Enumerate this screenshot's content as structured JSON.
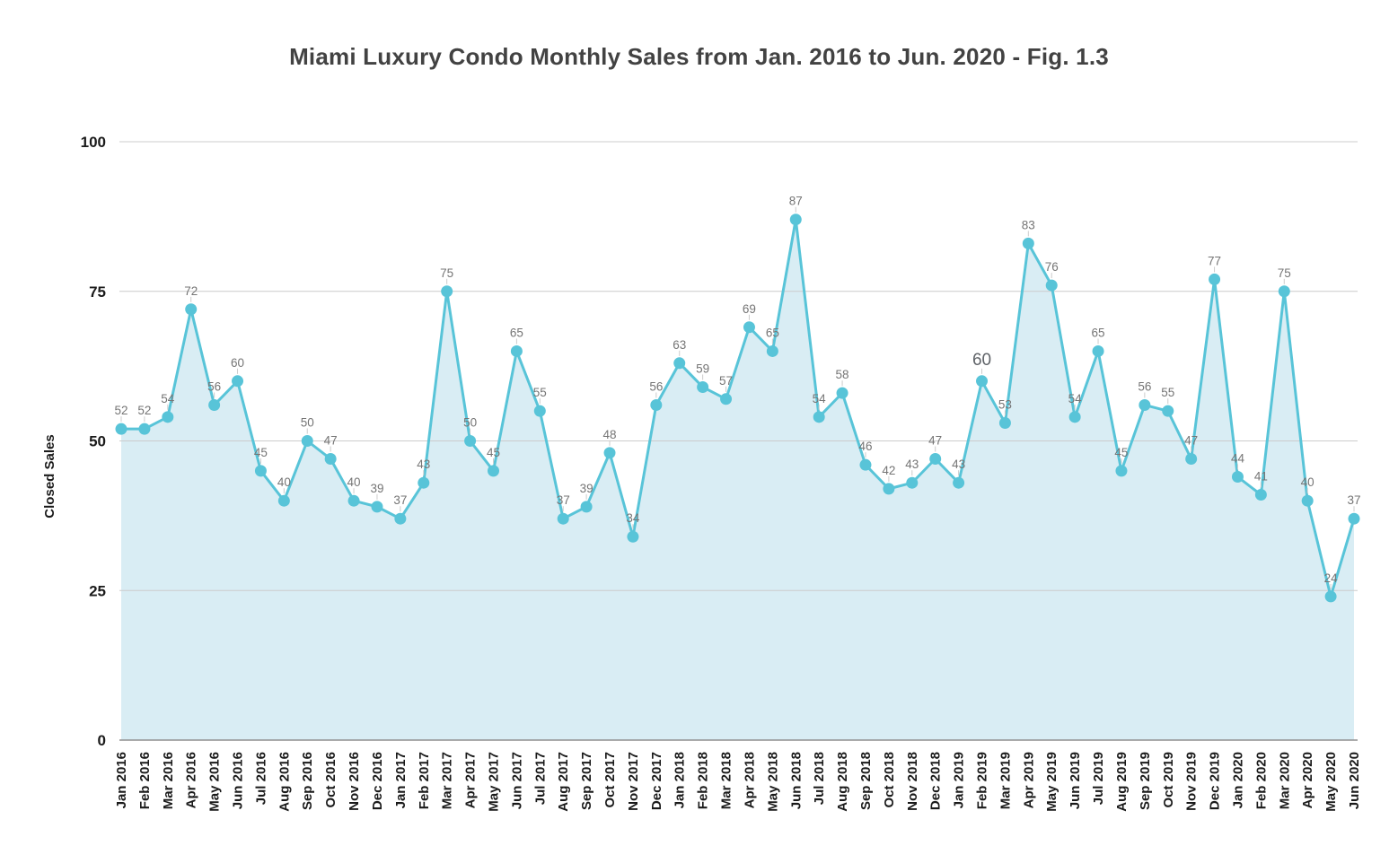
{
  "chart_data": {
    "type": "area",
    "title": "Miami Luxury Condo Monthly Sales from Jan. 2016 to Jun. 2020 - Fig. 1.3",
    "xlabel": "",
    "ylabel": "Closed Sales",
    "ylim": [
      0,
      100
    ],
    "yticks": [
      0,
      25,
      50,
      75,
      100
    ],
    "grid": "horizontal",
    "legend": "none",
    "point_labels_visible": true,
    "categories": [
      "Jan 2016",
      "Feb 2016",
      "Mar 2016",
      "Apr 2016",
      "May 2016",
      "Jun 2016",
      "Jul 2016",
      "Aug 2016",
      "Sep 2016",
      "Oct 2016",
      "Nov 2016",
      "Dec 2016",
      "Jan 2017",
      "Feb 2017",
      "Mar 2017",
      "Apr 2017",
      "May 2017",
      "Jun 2017",
      "Jul 2017",
      "Aug 2017",
      "Sep 2017",
      "Oct 2017",
      "Nov 2017",
      "Dec 2017",
      "Jan 2018",
      "Feb 2018",
      "Mar 2018",
      "Apr 2018",
      "May 2018",
      "Jun 2018",
      "Jul 2018",
      "Aug 2018",
      "Sep 2018",
      "Oct 2018",
      "Nov 2018",
      "Dec 2018",
      "Jan 2019",
      "Feb 2019",
      "Mar 2019",
      "Apr 2019",
      "May 2019",
      "Jun 2019",
      "Jul 2019",
      "Aug 2019",
      "Sep 2019",
      "Oct 2019",
      "Nov 2019",
      "Dec 2019",
      "Jan 2020",
      "Feb 2020",
      "Mar 2020",
      "Apr 2020",
      "May 2020",
      "Jun 2020"
    ],
    "series": [
      {
        "name": "Closed Sales",
        "values": [
          52,
          52,
          54,
          72,
          56,
          60,
          45,
          40,
          50,
          47,
          40,
          39,
          37,
          43,
          75,
          50,
          45,
          65,
          55,
          37,
          39,
          48,
          34,
          56,
          63,
          59,
          57,
          69,
          65,
          87,
          54,
          58,
          46,
          42,
          43,
          47,
          43,
          60,
          53,
          83,
          76,
          54,
          65,
          45,
          56,
          55,
          47,
          77,
          44,
          41,
          75,
          40,
          24,
          37
        ]
      }
    ],
    "emphasized_label": {
      "category": "Feb 2019",
      "value": 60,
      "index": 37
    },
    "colors": {
      "line": "#58c4d8",
      "marker": "#58c4d8",
      "fill": "#d9edf4",
      "gridline": "#cccccc",
      "baseline": "#8f8f8f",
      "connector": "#cccccc",
      "data_label": "#757575",
      "emphasized_label": "#5f6368",
      "tick_label": "#1a1a1a",
      "title": "#424242"
    }
  }
}
